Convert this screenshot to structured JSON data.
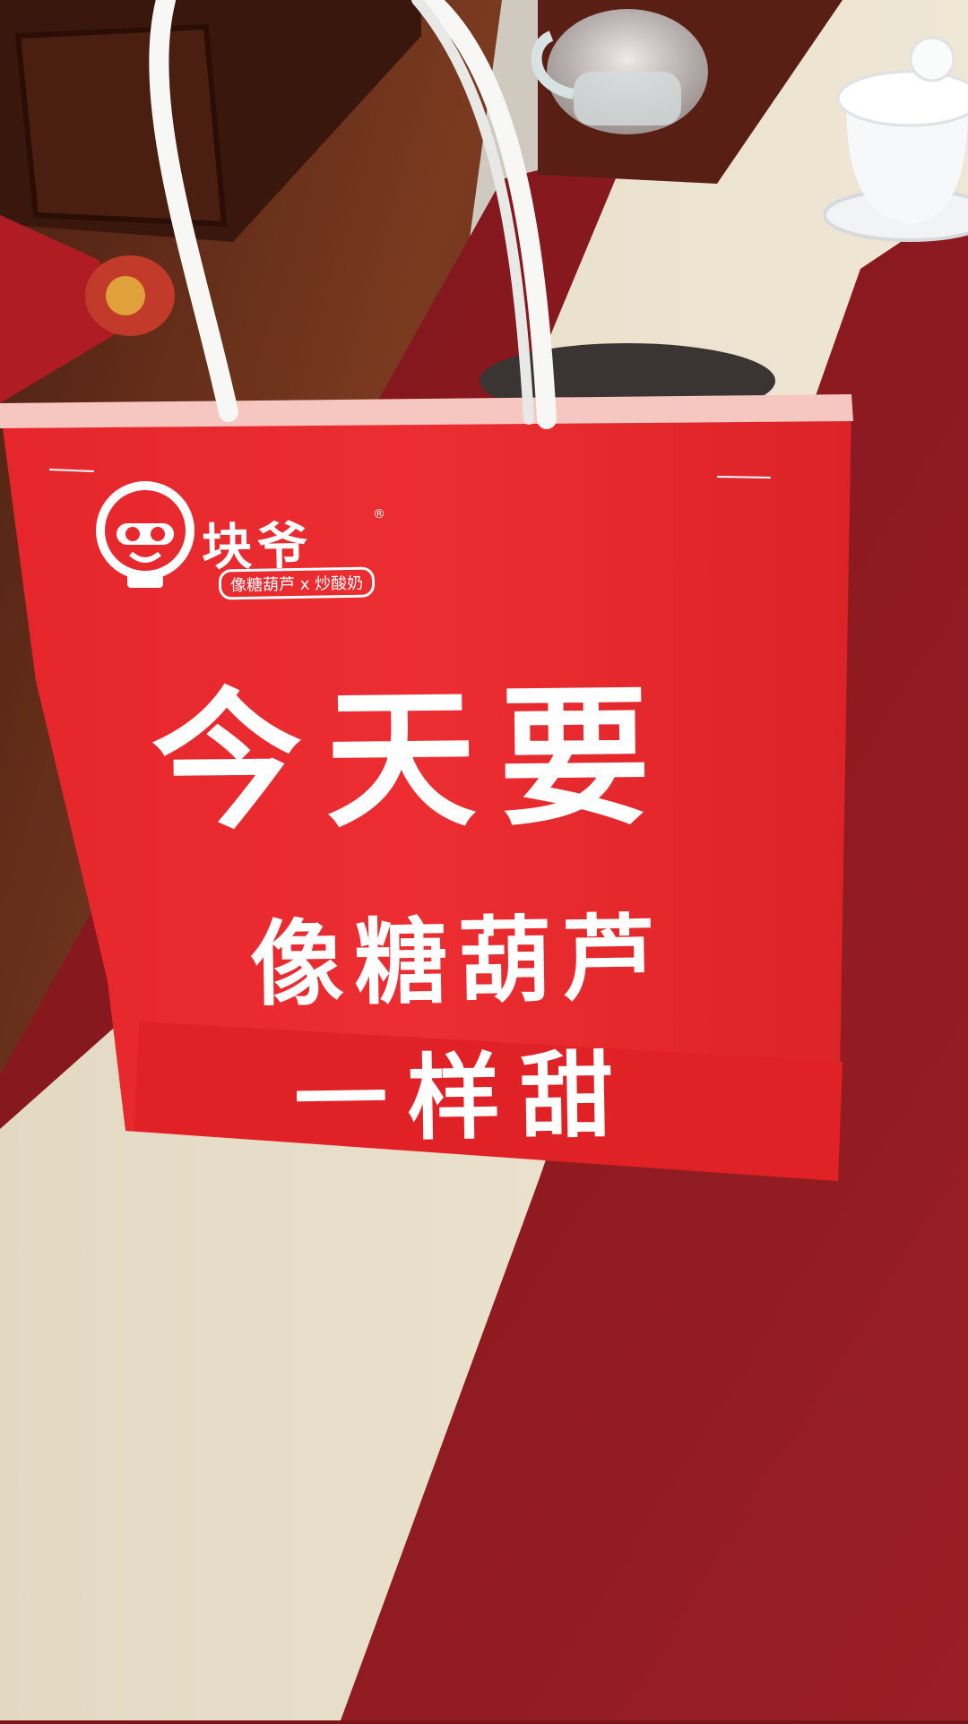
{
  "bag": {
    "brand_name": "块爷",
    "brand_registered": "®",
    "brand_tagline": "像糖葫芦 x 炒酸奶",
    "headline_line1": "今天要",
    "headline_line2": "像糖葫芦",
    "headline_line3": "一样甜"
  },
  "colors": {
    "bag_red": "#e8282c",
    "runner_cream": "#ece3cf",
    "runner_red": "#8a1a20",
    "floor_wood": "#6b2e1c",
    "tile_floor": "#c9c4bb",
    "handle_white": "#f7f7f5"
  },
  "objects": [
    "paper-bag",
    "table-runner",
    "glass-teapot",
    "porcelain-gaiwan",
    "ashtray",
    "wooden-cabinet",
    "red-cushion"
  ]
}
